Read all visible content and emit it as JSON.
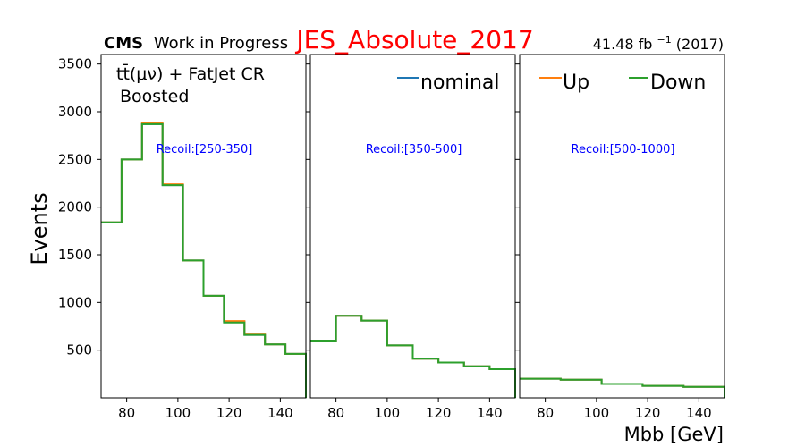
{
  "header": {
    "cms": "CMS",
    "work_in_progress": "Work in Progress",
    "title": "JES_Absolute_2017",
    "lumi_value": "41.48 fb",
    "lumi_exp": "−1",
    "lumi_year": " (2017)",
    "title_color": "#ff0000"
  },
  "region": {
    "process": "tt̄(μν) + FatJet CR",
    "boost": "Boosted"
  },
  "legend": {
    "nominal": "nominal",
    "up": "Up",
    "down": "Down"
  },
  "colors": {
    "nominal": "#1f77b4",
    "up": "#ff7f0e",
    "down": "#2ca02c",
    "recoil_label": "#0000ff"
  },
  "chart_data": {
    "type": "step",
    "xlabel": "Mbb [GeV]",
    "ylabel": "Events",
    "ylim": [
      0,
      3600
    ],
    "yticks": [
      500,
      1000,
      1500,
      2000,
      2500,
      3000,
      3500
    ],
    "xticks": [
      80,
      100,
      120,
      140
    ],
    "grid": false,
    "legend_placement": "top-right",
    "panels": [
      {
        "recoil_label": "Recoil:[250-350]",
        "xlim": [
          70,
          150
        ],
        "bin_edges": [
          70,
          78,
          86,
          94,
          102,
          110,
          118,
          126,
          134,
          142,
          150
        ],
        "series": [
          {
            "name": "nominal",
            "values": [
              1840,
              2500,
              2870,
              2230,
              1440,
              1070,
              800,
              660,
              560,
              460
            ]
          },
          {
            "name": "Up",
            "values": [
              1840,
              2500,
              2880,
              2240,
              1440,
              1070,
              805,
              665,
              560,
              460
            ]
          },
          {
            "name": "Down",
            "values": [
              1840,
              2500,
              2870,
              2230,
              1440,
              1070,
              790,
              660,
              560,
              460
            ]
          }
        ]
      },
      {
        "recoil_label": "Recoil:[350-500]",
        "xlim": [
          70,
          150
        ],
        "bin_edges": [
          70,
          80,
          90,
          100,
          110,
          120,
          130,
          140,
          150
        ],
        "series": [
          {
            "name": "nominal",
            "values": [
              600,
              860,
              810,
              550,
              410,
              370,
              330,
              300
            ]
          },
          {
            "name": "Up",
            "values": [
              600,
              860,
              810,
              550,
              410,
              370,
              330,
              300
            ]
          },
          {
            "name": "Down",
            "values": [
              600,
              860,
              810,
              550,
              410,
              370,
              330,
              300
            ]
          }
        ]
      },
      {
        "recoil_label": "Recoil:[500-1000]",
        "xlim": [
          70,
          150
        ],
        "bin_edges": [
          70,
          86,
          102,
          118,
          134,
          150
        ],
        "series": [
          {
            "name": "nominal",
            "values": [
              200,
              190,
              145,
              125,
              115
            ]
          },
          {
            "name": "Up",
            "values": [
              200,
              190,
              145,
              125,
              115
            ]
          },
          {
            "name": "Down",
            "values": [
              200,
              190,
              145,
              125,
              115
            ]
          }
        ]
      }
    ]
  }
}
